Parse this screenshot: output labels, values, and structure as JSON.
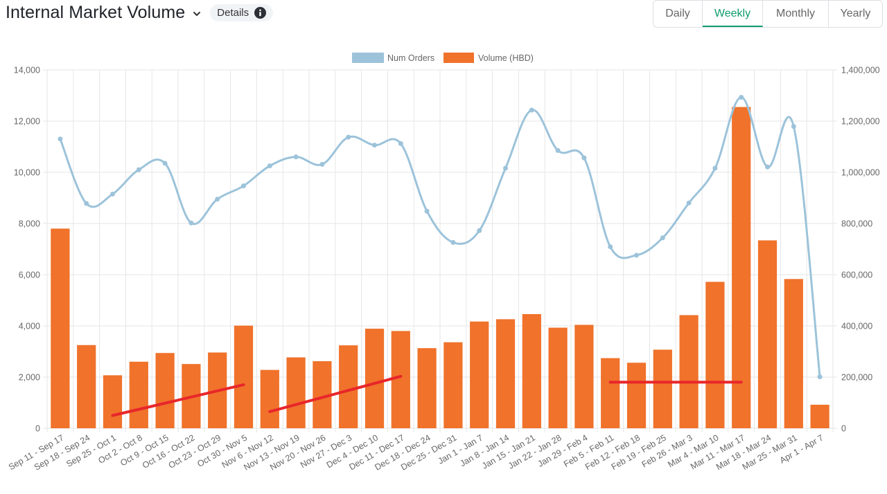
{
  "header": {
    "title": "Internal Market Volume",
    "details_label": "Details",
    "tabs": [
      {
        "label": "Daily",
        "active": false
      },
      {
        "label": "Weekly",
        "active": true
      },
      {
        "label": "Monthly",
        "active": false
      },
      {
        "label": "Yearly",
        "active": false
      }
    ],
    "accent_color": "#0f9d6f"
  },
  "chart_data": {
    "type": "bar",
    "title": "",
    "categories": [
      "Sep 11 - Sep 17",
      "Sep 18 - Sep 24",
      "Sep 25 - Oct 1",
      "Oct 2 - Oct 8",
      "Oct 9 - Oct 15",
      "Oct 16 - Oct 22",
      "Oct 23 - Oct 29",
      "Oct 30 - Nov 5",
      "Nov 6 - Nov 12",
      "Nov 13 - Nov 19",
      "Nov 20 - Nov 26",
      "Nov 27 - Dec 3",
      "Dec 4 - Dec 10",
      "Dec 11 - Dec 17",
      "Dec 18 - Dec 24",
      "Dec 25 - Dec 31",
      "Jan 1 - Jan 7",
      "Jan 8 - Jan 14",
      "Jan 15 - Jan 21",
      "Jan 22 - Jan 28",
      "Jan 29 - Feb 4",
      "Feb 5 - Feb 11",
      "Feb 12 - Feb 18",
      "Feb 19 - Feb 25",
      "Feb 26 - Mar 3",
      "Mar 4 - Mar 10",
      "Mar 11 - Mar 17",
      "Mar 18 - Mar 24",
      "Mar 25 - Mar 31",
      "Apr 1 - Apr 7"
    ],
    "series": [
      {
        "name": "Num Orders",
        "type": "line",
        "axis": "left",
        "color": "#9cc3da",
        "values": [
          11300,
          8780,
          9150,
          10100,
          10350,
          8020,
          8950,
          9470,
          10250,
          10600,
          10310,
          11370,
          11060,
          11120,
          8480,
          7260,
          7720,
          10160,
          12430,
          10850,
          10560,
          7090,
          6760,
          7440,
          8800,
          10160,
          12930,
          10210,
          11790,
          2010
        ]
      },
      {
        "name": "Volume (HBD)",
        "type": "bar",
        "axis": "right",
        "color": "#f0722b",
        "values": [
          780000,
          325000,
          207000,
          260000,
          294000,
          251000,
          296000,
          401000,
          228000,
          277000,
          262000,
          324000,
          389000,
          380000,
          313000,
          336000,
          417000,
          426000,
          446000,
          393000,
          404000,
          274000,
          256000,
          307000,
          442000,
          572000,
          1255000,
          734000,
          583000,
          92000
        ]
      }
    ],
    "left_axis": {
      "ylim": [
        0,
        14000
      ],
      "ticks": [
        "0",
        "2,000",
        "4,000",
        "6,000",
        "8,000",
        "10,000",
        "12,000",
        "14,000"
      ]
    },
    "right_axis": {
      "ylim": [
        0,
        1400000
      ],
      "ticks": [
        "0",
        "200,000",
        "400,000",
        "600,000",
        "800,000",
        "1,000,000",
        "1,200,000",
        "1,400,000"
      ]
    },
    "grid": true,
    "legend_position": "top-center",
    "annotations": [
      {
        "type": "trend-line",
        "color": "#e8262a",
        "from": {
          "category": "Sep 25 - Oct 1",
          "y": 500
        },
        "to": {
          "category": "Oct 30 - Nov 5",
          "y": 1700
        }
      },
      {
        "type": "trend-line",
        "color": "#e8262a",
        "from": {
          "category": "Nov 6 - Nov 12",
          "y": 650
        },
        "to": {
          "category": "Dec 11 - Dec 17",
          "y": 2030
        }
      },
      {
        "type": "trend-line",
        "color": "#e8262a",
        "from": {
          "category": "Feb 5 - Feb 11",
          "y": 1800
        },
        "to": {
          "category": "Mar 11 - Mar 17",
          "y": 1800
        }
      }
    ]
  }
}
